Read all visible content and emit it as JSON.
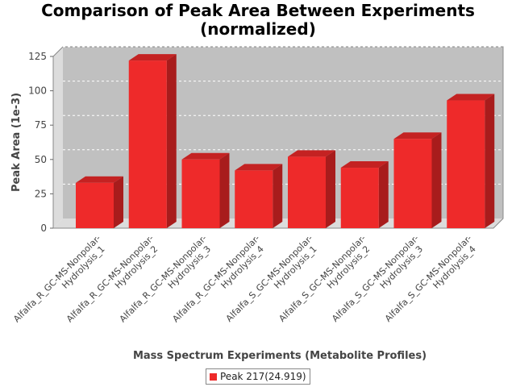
{
  "chart_data": {
    "type": "bar",
    "title": "Comparison of Peak Area Between Experiments\n(normalized)",
    "xlabel": "Mass Spectrum Experiments (Metabolite Profiles)",
    "ylabel": "Peak Area (1e-3)",
    "ylim": [
      0,
      125
    ],
    "yticks": [
      "0",
      "25",
      "50",
      "75",
      "100",
      "125"
    ],
    "categories": [
      "Alfalfa_R_GC-MS-Nonpolar-Hydrolysis_1",
      "Alfalfa_R_GC-MS-Nonpolar-Hydrolysis_2",
      "Alfalfa_R_GC-MS-Nonpolar-Hydrolysis_3",
      "Alfalfa_R_GC-MS-Nonpolar-Hydrolysis_4",
      "Alfalfa_S_GC-MS-Nonpolar-Hydrolysis_1",
      "Alfalfa_S_GC-MS-Nonpolar-Hydrolysis_2",
      "Alfalfa_S_GC-MS-Nonpolar-Hydrolysis_3",
      "Alfalfa_S_GC-MS-Nonpolar-Hydrolysis_4"
    ],
    "category_lines": [
      [
        "Alfalfa_R_GC-MS-Nonpolar-",
        "Hydrolysis_1"
      ],
      [
        "Alfalfa_R_GC-MS-Nonpolar-",
        "Hydrolysis_2"
      ],
      [
        "Alfalfa_R_GC-MS-Nonpolar-",
        "Hydrolysis_3"
      ],
      [
        "Alfalfa_R_GC-MS-Nonpolar-",
        "Hydrolysis_4"
      ],
      [
        "Alfalfa_S_GC-MS-Nonpolar-",
        "Hydrolysis_1"
      ],
      [
        "Alfalfa_S_GC-MS-Nonpolar-",
        "Hydrolysis_2"
      ],
      [
        "Alfalfa_S_GC-MS-Nonpolar-",
        "Hydrolysis_3"
      ],
      [
        "Alfalfa_S_GC-MS-Nonpolar-",
        "Hydrolysis_4"
      ]
    ],
    "series": [
      {
        "name": "Peak 217(24.919)",
        "values": [
          33,
          122,
          50,
          42,
          52,
          44,
          65,
          93
        ]
      }
    ],
    "grid": true,
    "legend_position": "bottom",
    "colors": {
      "bar_front": "#ee2a2a",
      "bar_top": "#c42222",
      "bar_side": "#a81c1c",
      "plot_back": "#c0c0c0",
      "plot_wall": "#dcdcdc"
    }
  }
}
